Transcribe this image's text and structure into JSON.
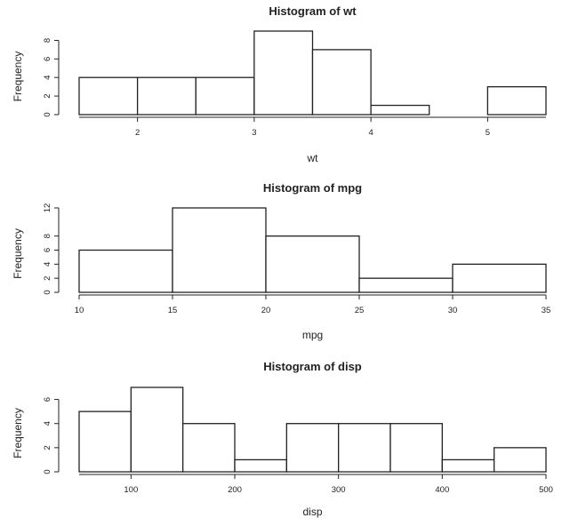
{
  "chart_data": [
    {
      "type": "bar",
      "title": "Histogram of wt",
      "xlabel": "wt",
      "ylabel": "Frequency",
      "bins": [
        [
          1.5,
          2.0
        ],
        [
          2.0,
          2.5
        ],
        [
          2.5,
          3.0
        ],
        [
          3.0,
          3.5
        ],
        [
          3.5,
          4.0
        ],
        [
          4.0,
          4.5
        ],
        [
          4.5,
          5.0
        ],
        [
          5.0,
          5.5
        ]
      ],
      "values": [
        4,
        4,
        4,
        9,
        7,
        1,
        0,
        3
      ],
      "xlim": [
        1.5,
        5.5
      ],
      "ylim": [
        0,
        9
      ],
      "xticks": [
        2,
        3,
        4,
        5
      ],
      "yticks": [
        0,
        2,
        4,
        6,
        8
      ],
      "grid": false
    },
    {
      "type": "bar",
      "title": "Histogram of mpg",
      "xlabel": "mpg",
      "ylabel": "Frequency",
      "bins": [
        [
          10,
          15
        ],
        [
          15,
          20
        ],
        [
          20,
          25
        ],
        [
          25,
          30
        ],
        [
          30,
          35
        ]
      ],
      "values": [
        6,
        12,
        8,
        2,
        4
      ],
      "xlim": [
        10,
        35
      ],
      "ylim": [
        0,
        12
      ],
      "xticks": [
        10,
        15,
        20,
        25,
        30,
        35
      ],
      "yticks": [
        0,
        2,
        4,
        6,
        8,
        12
      ],
      "grid": false
    },
    {
      "type": "bar",
      "title": "Histogram of disp",
      "xlabel": "disp",
      "ylabel": "Frequency",
      "bins": [
        [
          50,
          100
        ],
        [
          100,
          150
        ],
        [
          150,
          200
        ],
        [
          200,
          250
        ],
        [
          250,
          300
        ],
        [
          300,
          350
        ],
        [
          350,
          400
        ],
        [
          400,
          450
        ],
        [
          450,
          500
        ]
      ],
      "values": [
        5,
        7,
        4,
        1,
        4,
        4,
        4,
        1,
        2
      ],
      "xlim": [
        50,
        500
      ],
      "ylim": [
        0,
        7
      ],
      "xticks": [
        100,
        200,
        300,
        400,
        500
      ],
      "yticks": [
        0,
        2,
        4,
        6
      ],
      "grid": false
    }
  ]
}
